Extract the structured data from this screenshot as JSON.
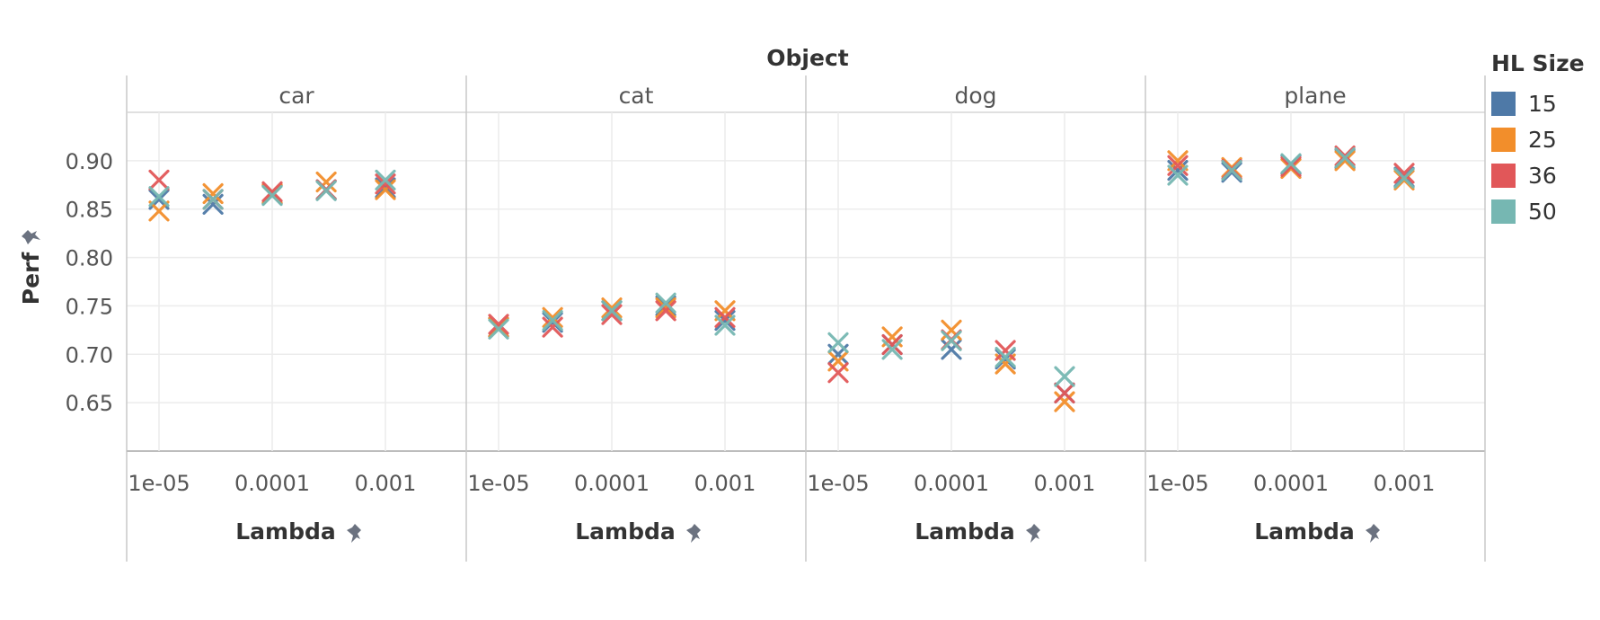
{
  "chart_data": {
    "type": "scatter",
    "marker": "x",
    "title": "Object",
    "ylabel": "Perf",
    "xlabel": "Lambda",
    "x_scale": "log",
    "x_ticks": [
      "1e-05",
      "0.0001",
      "0.001"
    ],
    "x_values_tested": [
      1e-05,
      3e-05,
      0.0001,
      0.0003,
      0.001
    ],
    "y_ticks": [
      "0.90",
      "0.85",
      "0.80",
      "0.75",
      "0.70",
      "0.65"
    ],
    "ylim": [
      0.6,
      0.95
    ],
    "legend": {
      "title": "HL Size",
      "placement": "right",
      "items": [
        {
          "name": "15",
          "color": "#4e79a7"
        },
        {
          "name": "25",
          "color": "#f28e2b"
        },
        {
          "name": "36",
          "color": "#e15759"
        },
        {
          "name": "50",
          "color": "#76b7b2"
        }
      ]
    },
    "panels": [
      {
        "name": "car",
        "series": [
          {
            "name": "15",
            "values": [
              0.86,
              0.855,
              0.865,
              0.87,
              0.872
            ]
          },
          {
            "name": "25",
            "values": [
              0.848,
              0.866,
              0.866,
              0.878,
              0.87
            ]
          },
          {
            "name": "36",
            "values": [
              0.88,
              0.86,
              0.868,
              0.87,
              0.876
            ]
          },
          {
            "name": "50",
            "values": [
              0.863,
              0.86,
              0.864,
              0.869,
              0.88
            ]
          }
        ]
      },
      {
        "name": "cat",
        "series": [
          {
            "name": "15",
            "values": [
              0.728,
              0.733,
              0.745,
              0.75,
              0.735
            ]
          },
          {
            "name": "25",
            "values": [
              0.728,
              0.738,
              0.748,
              0.748,
              0.745
            ]
          },
          {
            "name": "36",
            "values": [
              0.731,
              0.728,
              0.741,
              0.745,
              0.738
            ]
          },
          {
            "name": "50",
            "values": [
              0.726,
              0.735,
              0.745,
              0.753,
              0.73
            ]
          }
        ]
      },
      {
        "name": "dog",
        "series": [
          {
            "name": "15",
            "values": [
              0.7,
              0.71,
              0.705,
              0.695,
              0.66
            ]
          },
          {
            "name": "25",
            "values": [
              0.693,
              0.718,
              0.725,
              0.69,
              0.651
            ]
          },
          {
            "name": "36",
            "values": [
              0.681,
              0.71,
              0.715,
              0.704,
              0.66
            ]
          },
          {
            "name": "50",
            "values": [
              0.712,
              0.705,
              0.714,
              0.697,
              0.677
            ]
          }
        ]
      },
      {
        "name": "plane",
        "series": [
          {
            "name": "15",
            "values": [
              0.89,
              0.888,
              0.896,
              0.902,
              0.883
            ]
          },
          {
            "name": "25",
            "values": [
              0.9,
              0.893,
              0.892,
              0.9,
              0.88
            ]
          },
          {
            "name": "36",
            "values": [
              0.895,
              0.891,
              0.894,
              0.905,
              0.887
            ]
          },
          {
            "name": "50",
            "values": [
              0.885,
              0.89,
              0.897,
              0.903,
              0.882
            ]
          }
        ]
      }
    ]
  }
}
